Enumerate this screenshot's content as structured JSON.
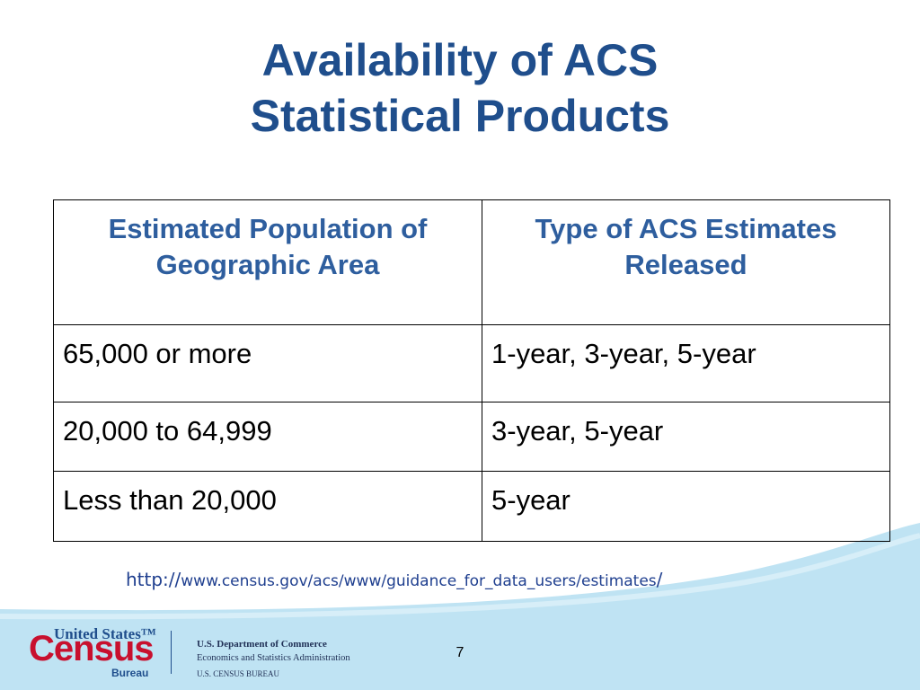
{
  "title": {
    "line1": "Availability of ACS",
    "line2": "Statistical Products"
  },
  "table": {
    "headers": [
      "Estimated Population of Geographic Area",
      "Type of ACS Estimates Released"
    ],
    "rows": [
      [
        "65,000 or more",
        "1-year, 3-year, 5-year"
      ],
      [
        "20,000 to 64,999",
        "3-year, 5-year"
      ],
      [
        "Less than 20,000",
        "5-year"
      ]
    ]
  },
  "source": {
    "prefix": "http://",
    "path": "www.census.gov/acs/www/guidance_for_data_users/estimates",
    "suffix": "/"
  },
  "footer": {
    "logo": {
      "top": "United States™",
      "main": "Census",
      "bottom": "Bureau"
    },
    "department": {
      "line1": "U.S. Department of Commerce",
      "line2": "Economics and Statistics Administration",
      "line3": "U.S. CENSUS BUREAU"
    },
    "page_number": "7"
  },
  "colors": {
    "title": "#1F4E8C",
    "header_text": "#2E5E9E",
    "footer_band": "#BFE3F3",
    "logo_red": "#C8102E"
  }
}
